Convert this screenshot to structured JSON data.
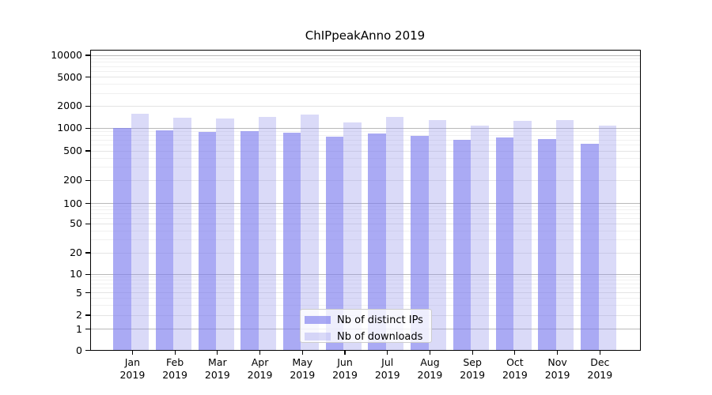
{
  "title": "ChIPpeakAnno 2019",
  "colors": {
    "ips_bar": "rgba(124,124,238,0.65)",
    "downloads_bar": "rgba(150,150,235,0.35)",
    "major_gridline": "#b9b9b9",
    "labeled_gridline": "#e4e4e4",
    "minor_gridline": "#f0f0f0",
    "axis": "#000000",
    "legend_border": "#cccccc"
  },
  "y_axis": {
    "tick_labels": [
      "10000",
      "5000",
      "2000",
      "1000",
      "500",
      "200",
      "100",
      "50",
      "20",
      "10",
      "5",
      "2",
      "1",
      "0"
    ]
  },
  "x_axis": {
    "months": [
      "Jan",
      "Feb",
      "Mar",
      "Apr",
      "May",
      "Jun",
      "Jul",
      "Aug",
      "Sep",
      "Oct",
      "Nov",
      "Dec"
    ],
    "year": "2019"
  },
  "legend": {
    "items": [
      {
        "label": "Nb of distinct IPs",
        "color": "rgba(124,124,238,0.65)"
      },
      {
        "label": "Nb of downloads",
        "color": "rgba(150,150,235,0.35)"
      }
    ]
  },
  "chart_data": {
    "type": "bar",
    "title": "ChIPpeakAnno 2019",
    "categories": [
      "Jan 2019",
      "Feb 2019",
      "Mar 2019",
      "Apr 2019",
      "May 2019",
      "Jun 2019",
      "Jul 2019",
      "Aug 2019",
      "Sep 2019",
      "Oct 2019",
      "Nov 2019",
      "Dec 2019"
    ],
    "series": [
      {
        "name": "Nb of distinct IPs",
        "values": [
          1015,
          930,
          900,
          910,
          865,
          775,
          850,
          795,
          700,
          755,
          720,
          615
        ]
      },
      {
        "name": "Nb of downloads",
        "values": [
          1570,
          1390,
          1355,
          1420,
          1540,
          1210,
          1440,
          1275,
          1080,
          1245,
          1305,
          1075
        ]
      }
    ],
    "xlabel": "",
    "ylabel": "",
    "yscale": "log-like",
    "ytick_values": [
      0,
      1,
      2,
      5,
      10,
      20,
      50,
      100,
      200,
      500,
      1000,
      2000,
      5000,
      10000
    ],
    "ylim": [
      0,
      10000
    ],
    "grid": "on",
    "legend_position": "lower center"
  }
}
